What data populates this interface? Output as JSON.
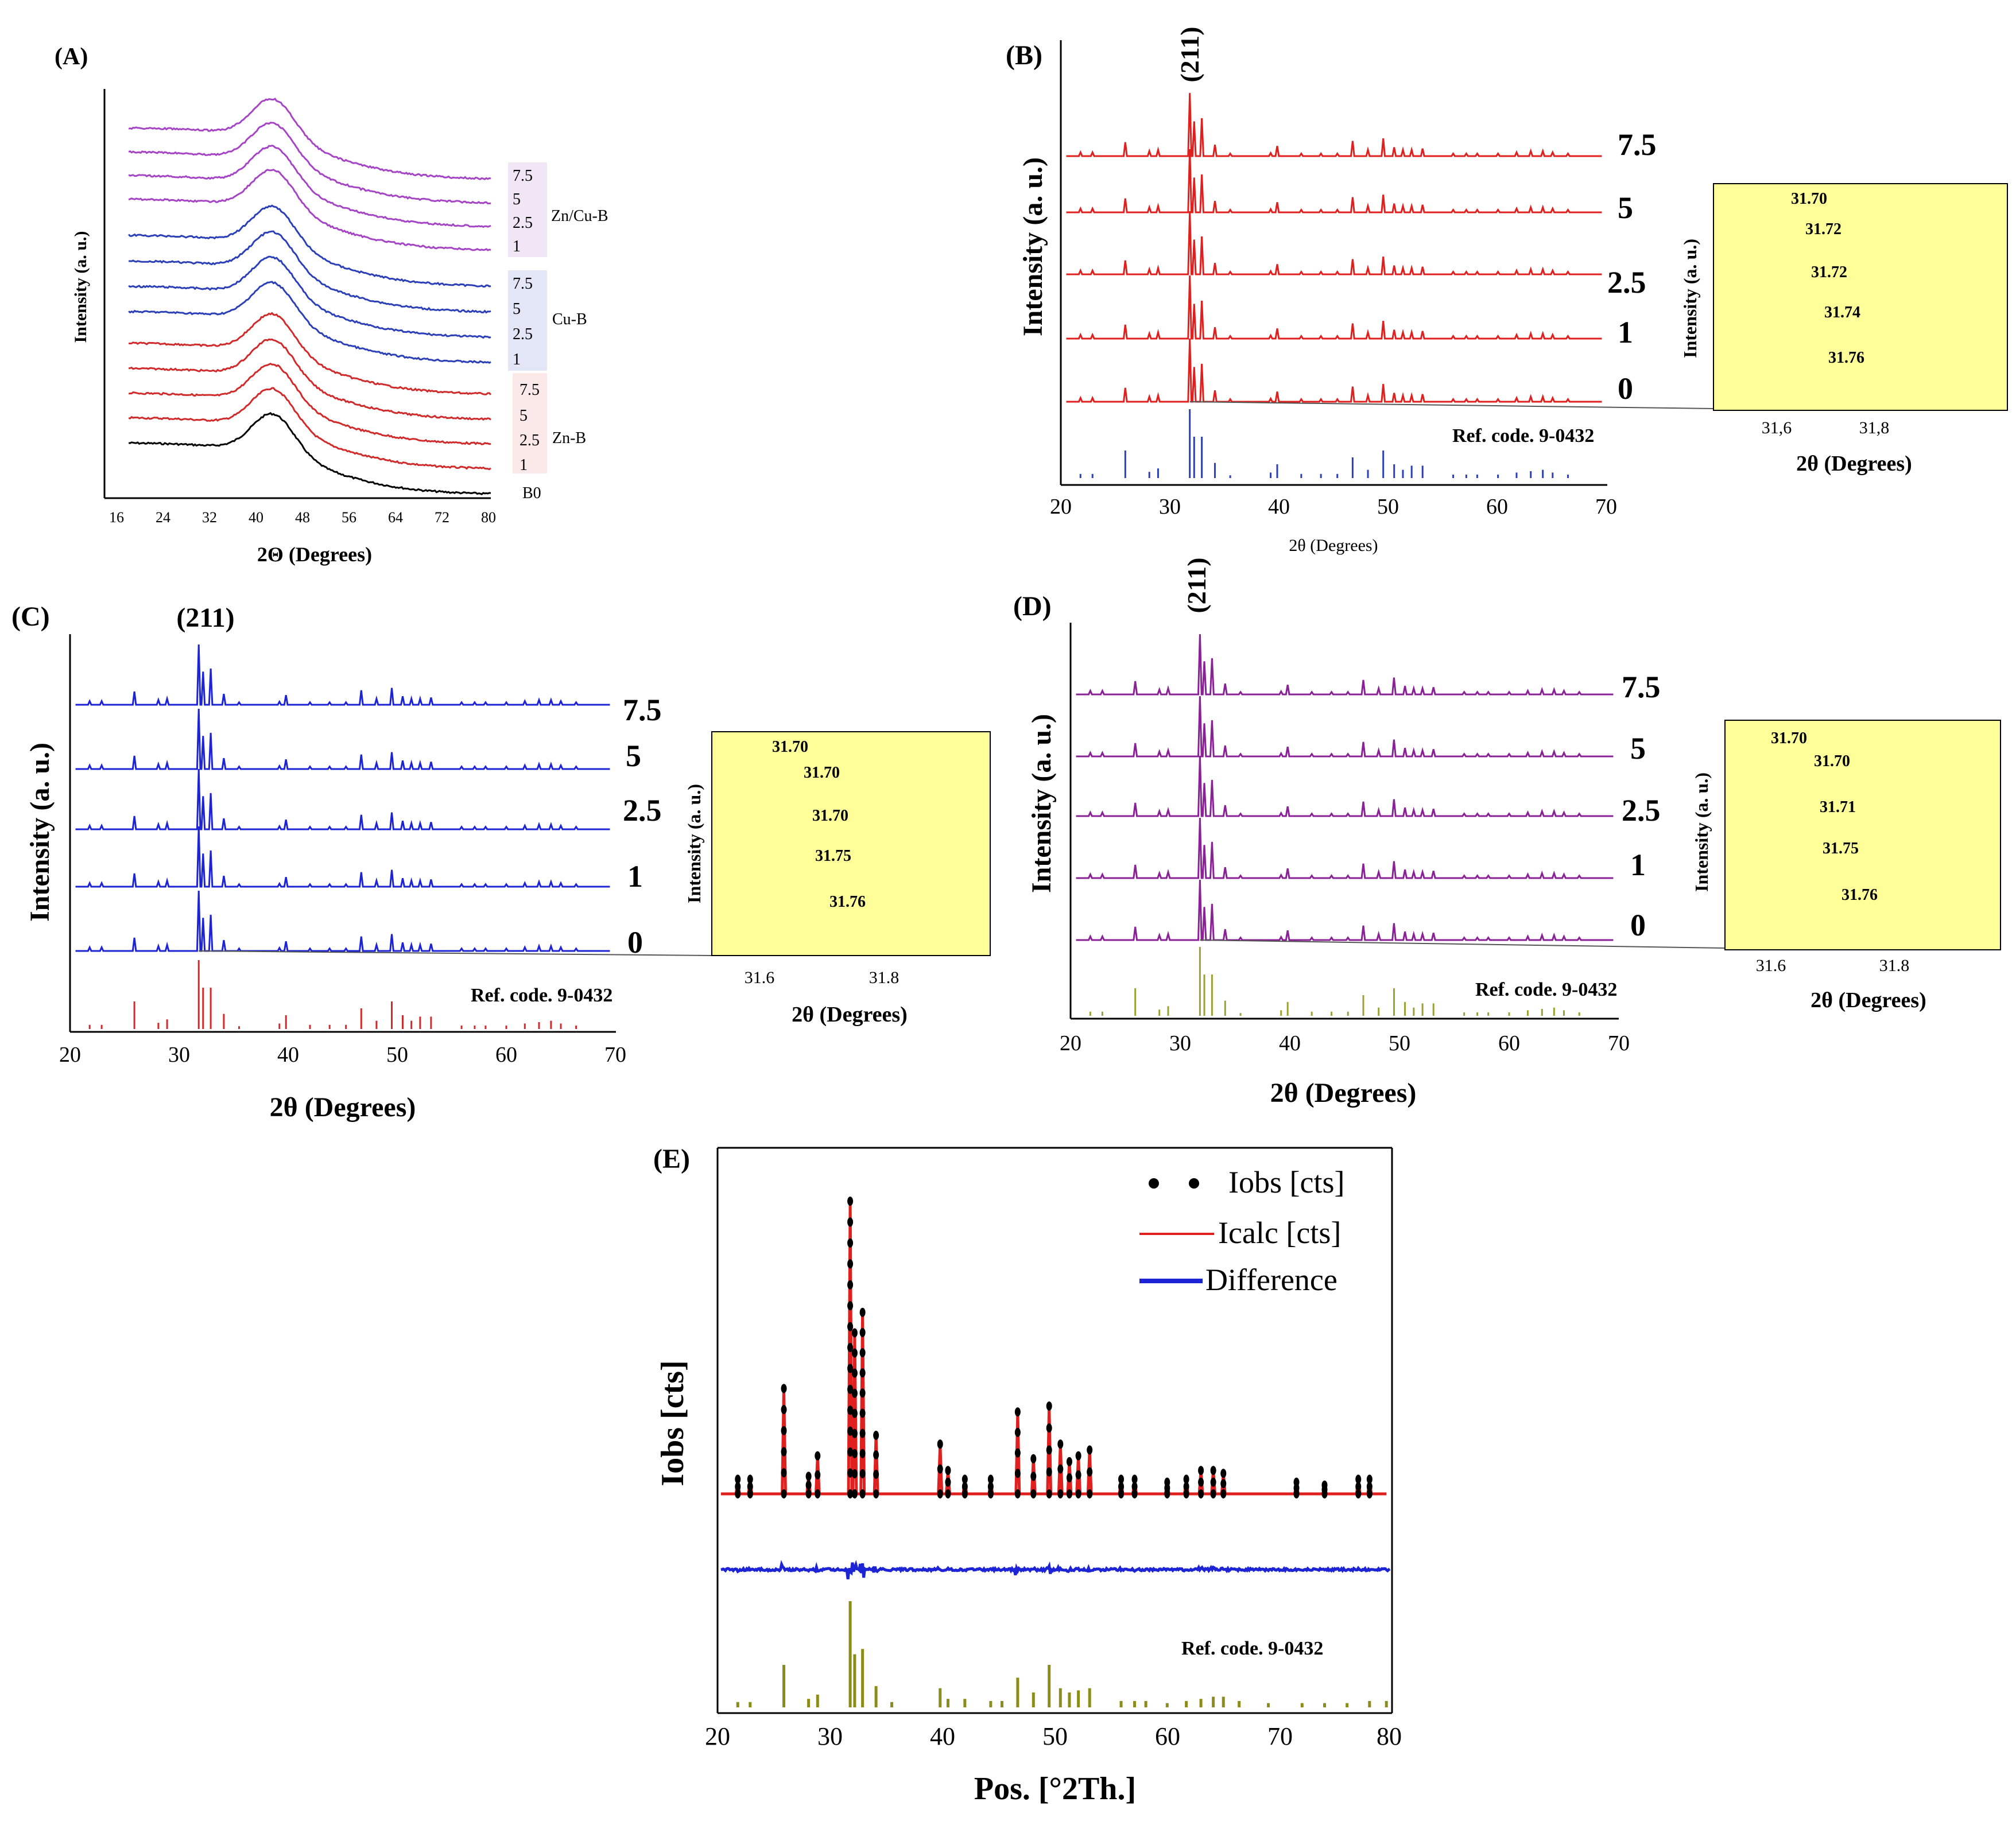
{
  "figure": {
    "panel_A": {
      "letter": "(A)",
      "xlabel": "2Θ (Degrees)",
      "ylabel": "Intensity (a. u.)",
      "xticks": [
        "16",
        "24",
        "32",
        "40",
        "48",
        "56",
        "64",
        "72",
        "80"
      ],
      "groups": [
        {
          "name": "Zn/Cu-B",
          "labels": [
            "7.5",
            "5",
            "2.5",
            "1"
          ],
          "color": "#a545c6",
          "box": "#f1e6f5"
        },
        {
          "name": "Cu-B",
          "labels": [
            "7.5",
            "5",
            "2.5",
            "1"
          ],
          "color": "#2b3fb8",
          "box": "#e3e6f7"
        },
        {
          "name": "Zn-B",
          "labels": [
            "7.5",
            "5",
            "2.5",
            "1"
          ],
          "color": "#d02a2a",
          "box": "#fbe8e8"
        }
      ],
      "base_label": "B0",
      "base_color": "#000000"
    },
    "panel_B": {
      "letter": "(B)",
      "peak_label": "(211)",
      "color": "#e0201e",
      "ref_color": "#2b3fb8",
      "concentrations": [
        "7.5",
        "5",
        "2.5",
        "1",
        "0"
      ],
      "ref_label": "Ref. code. 9-0432",
      "xlabel": "2θ (Degrees)",
      "ylabel": "Intensity (a. u.)",
      "xticks": [
        "20",
        "30",
        "40",
        "50",
        "60",
        "70"
      ],
      "inset": {
        "peaks": [
          "31.70",
          "31.72",
          "31.72",
          "31.74",
          "31.76"
        ],
        "xticks": [
          "31,6",
          "31,8"
        ],
        "xlabel": "2θ (Degrees)",
        "ylabel": "Intensity (a. u.)",
        "line": "#c0392b"
      }
    },
    "panel_C": {
      "letter": "(C)",
      "peak_label": "(211)",
      "color": "#1c24d6",
      "ref_color": "#d02a2a",
      "concentrations": [
        "7.5",
        "5",
        "2.5",
        "1",
        "0"
      ],
      "ref_label": "Ref. code. 9-0432",
      "xlabel": "2θ (Degrees)",
      "ylabel": "Intensity (a. u.)",
      "xticks": [
        "20",
        "30",
        "40",
        "50",
        "60",
        "70"
      ],
      "inset": {
        "peaks": [
          "31.70",
          "31.70",
          "31.70",
          "31.75",
          "31.76"
        ],
        "xticks": [
          "31.6",
          "31.8"
        ],
        "xlabel": "2θ (Degrees)",
        "ylabel": "Intensity (a. u.)",
        "line": "#3b4fb0"
      }
    },
    "panel_D": {
      "letter": "(D)",
      "peak_label": "(211)",
      "color": "#8a2196",
      "ref_color": "#9aa236",
      "concentrations": [
        "7.5",
        "5",
        "2.5",
        "1",
        "0"
      ],
      "ref_label": "Ref. code. 9-0432",
      "xlabel": "2θ (Degrees)",
      "ylabel": "Intensity (a. u.)",
      "xticks": [
        "20",
        "30",
        "40",
        "50",
        "60",
        "70"
      ],
      "inset": {
        "peaks": [
          "31.70",
          "31.70",
          "31.71",
          "31.75",
          "31.76"
        ],
        "xticks": [
          "31.6",
          "31.8"
        ],
        "xlabel": "2θ (Degrees)",
        "ylabel": "Intensity (a. u.)",
        "line": "#7a3a8a"
      }
    },
    "panel_E": {
      "letter": "(E)",
      "legend": [
        "Iobs [cts]",
        "Icalc [cts]",
        "Difference"
      ],
      "ylabel": "Iobs [cts]",
      "xlabel": "Pos. [°2Th.]",
      "xticks": [
        "20",
        "30",
        "40",
        "50",
        "60",
        "70",
        "80"
      ],
      "ref_label": "Ref. code. 9-0432",
      "colors": {
        "obs": "#000000",
        "calc": "#e0201e",
        "diff": "#1c24d6",
        "ref": "#8c8c1a"
      }
    }
  },
  "chart_data": [
    {
      "type": "line",
      "panel": "A",
      "title": "",
      "xlabel": "2Θ (Degrees)",
      "ylabel": "Intensity (a. u.)",
      "xlim": [
        16,
        80
      ],
      "series": [
        {
          "name": "B0"
        },
        {
          "name": "Zn-B 1"
        },
        {
          "name": "Zn-B 2.5"
        },
        {
          "name": "Zn-B 5"
        },
        {
          "name": "Zn-B 7.5"
        },
        {
          "name": "Cu-B 1"
        },
        {
          "name": "Cu-B 2.5"
        },
        {
          "name": "Cu-B 5"
        },
        {
          "name": "Cu-B 7.5"
        },
        {
          "name": "Zn/Cu-B 1"
        },
        {
          "name": "Zn/Cu-B 2.5"
        },
        {
          "name": "Zn/Cu-B 5"
        },
        {
          "name": "Zn/Cu-B 7.5"
        }
      ]
    },
    {
      "type": "line",
      "panel": "B/C/D",
      "xlabel": "2θ (Degrees)",
      "ylabel": "Intensity (a. u.)",
      "xlim": [
        20,
        70
      ],
      "peaks": {
        "x": [
          21.8,
          22.9,
          25.9,
          28.1,
          28.9,
          31.8,
          32.2,
          32.9,
          34.1,
          35.5,
          39.2,
          39.8,
          42.0,
          43.8,
          45.3,
          46.7,
          48.1,
          49.5,
          50.5,
          51.3,
          52.1,
          53.1,
          55.9,
          57.1,
          58.1,
          60.0,
          61.7,
          63.0,
          64.1,
          65.0,
          66.4
        ],
        "y": [
          6,
          6,
          22,
          8,
          10,
          100,
          55,
          60,
          18,
          4,
          5,
          16,
          4,
          4,
          4,
          24,
          10,
          28,
          14,
          10,
          10,
          12,
          4,
          4,
          4,
          4,
          6,
          8,
          8,
          6,
          4
        ]
      },
      "ref_lines": {
        "x": [
          21.8,
          22.9,
          25.9,
          28.1,
          28.9,
          31.8,
          32.2,
          32.9,
          34.1,
          35.5,
          39.2,
          39.8,
          42.0,
          43.8,
          45.3,
          46.7,
          48.1,
          49.5,
          50.5,
          51.3,
          52.1,
          53.1,
          55.9,
          57.1,
          58.1,
          60.0,
          61.7,
          63.0,
          64.1,
          65.0,
          66.4
        ],
        "y": [
          6,
          6,
          40,
          9,
          14,
          100,
          60,
          60,
          22,
          4,
          8,
          20,
          6,
          6,
          6,
          30,
          12,
          40,
          20,
          12,
          18,
          18,
          5,
          5,
          5,
          5,
          8,
          10,
          12,
          8,
          5
        ]
      }
    },
    {
      "type": "line",
      "panel": "B inset",
      "xlabel": "2θ (Degrees)",
      "ylabel": "Intensity (a. u.)",
      "series": [
        {
          "name": "7.5",
          "peak": 31.7
        },
        {
          "name": "5",
          "peak": 31.72
        },
        {
          "name": "2.5",
          "peak": 31.72
        },
        {
          "name": "1",
          "peak": 31.74
        },
        {
          "name": "0",
          "peak": 31.76
        }
      ]
    },
    {
      "type": "line",
      "panel": "C inset",
      "series": [
        {
          "name": "7.5",
          "peak": 31.7
        },
        {
          "name": "5",
          "peak": 31.7
        },
        {
          "name": "2.5",
          "peak": 31.7
        },
        {
          "name": "1",
          "peak": 31.75
        },
        {
          "name": "0",
          "peak": 31.76
        }
      ]
    },
    {
      "type": "line",
      "panel": "D inset",
      "series": [
        {
          "name": "7.5",
          "peak": 31.7
        },
        {
          "name": "5",
          "peak": 31.7
        },
        {
          "name": "2.5",
          "peak": 31.71
        },
        {
          "name": "1",
          "peak": 31.75
        },
        {
          "name": "0",
          "peak": 31.76
        }
      ]
    },
    {
      "type": "line",
      "panel": "E",
      "xlabel": "Pos. [°2Th.]",
      "ylabel": "Iobs [cts]",
      "xlim": [
        20,
        80
      ],
      "series": [
        {
          "name": "Iobs [cts]"
        },
        {
          "name": "Icalc [cts]"
        },
        {
          "name": "Difference"
        }
      ],
      "ref_label": "Ref. code. 9-0432"
    }
  ]
}
